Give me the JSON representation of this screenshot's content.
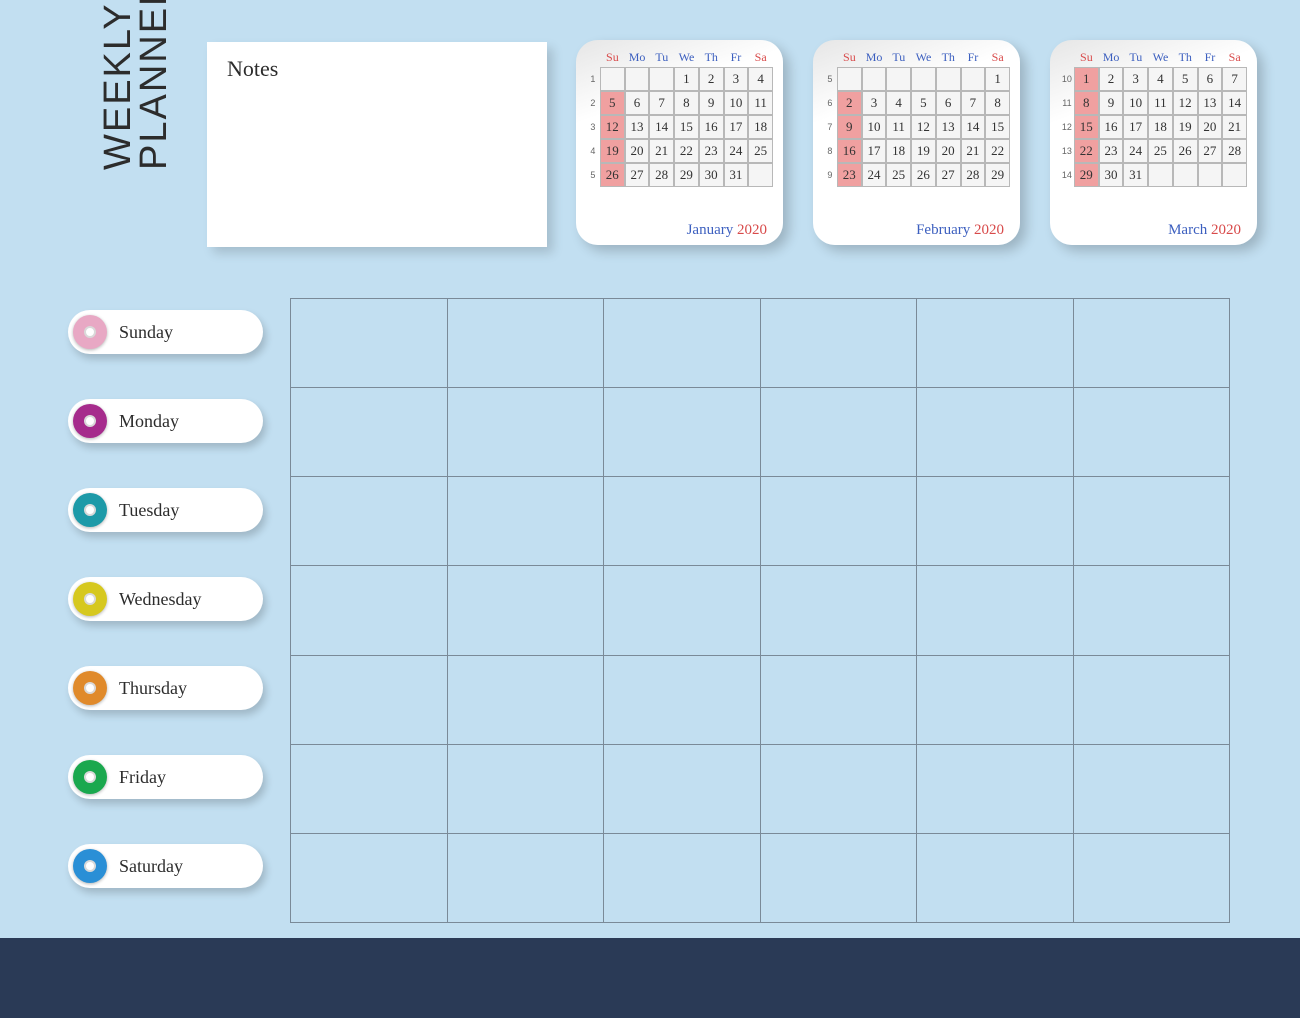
{
  "title": {
    "line1": "WEEKLY",
    "line2": "PLANNER"
  },
  "notes": {
    "label": "Notes"
  },
  "background_color": "#c2dff1",
  "calendars": [
    {
      "month": "January",
      "year": "2020",
      "dow": [
        "Su",
        "Mo",
        "Tu",
        "We",
        "Th",
        "Fr",
        "Sa"
      ],
      "week_nums": [
        "1",
        "2",
        "3",
        "4",
        "5"
      ],
      "weeks": [
        [
          "",
          "",
          "",
          "1",
          "2",
          "3",
          "4"
        ],
        [
          "5",
          "6",
          "7",
          "8",
          "9",
          "10",
          "11"
        ],
        [
          "12",
          "13",
          "14",
          "15",
          "16",
          "17",
          "18"
        ],
        [
          "19",
          "20",
          "21",
          "22",
          "23",
          "24",
          "25"
        ],
        [
          "26",
          "27",
          "28",
          "29",
          "30",
          "31",
          ""
        ]
      ]
    },
    {
      "month": "February",
      "year": "2020",
      "dow": [
        "Su",
        "Mo",
        "Tu",
        "We",
        "Th",
        "Fr",
        "Sa"
      ],
      "week_nums": [
        "5",
        "6",
        "7",
        "8",
        "9"
      ],
      "weeks": [
        [
          "",
          "",
          "",
          "",
          "",
          "",
          "1"
        ],
        [
          "2",
          "3",
          "4",
          "5",
          "6",
          "7",
          "8"
        ],
        [
          "9",
          "10",
          "11",
          "12",
          "13",
          "14",
          "15"
        ],
        [
          "16",
          "17",
          "18",
          "19",
          "20",
          "21",
          "22"
        ],
        [
          "23",
          "24",
          "25",
          "26",
          "27",
          "28",
          "29"
        ]
      ]
    },
    {
      "month": "March",
      "year": "2020",
      "dow": [
        "Su",
        "Mo",
        "Tu",
        "We",
        "Th",
        "Fr",
        "Sa"
      ],
      "week_nums": [
        "10",
        "11",
        "12",
        "13",
        "14"
      ],
      "weeks": [
        [
          "1",
          "2",
          "3",
          "4",
          "5",
          "6",
          "7"
        ],
        [
          "8",
          "9",
          "10",
          "11",
          "12",
          "13",
          "14"
        ],
        [
          "15",
          "16",
          "17",
          "18",
          "19",
          "20",
          "21"
        ],
        [
          "22",
          "23",
          "24",
          "25",
          "26",
          "27",
          "28"
        ],
        [
          "29",
          "30",
          "31",
          "",
          "",
          "",
          ""
        ]
      ]
    }
  ],
  "days": [
    {
      "label": "Sunday",
      "color": "#e8a8c4"
    },
    {
      "label": "Monday",
      "color": "#a62b8c"
    },
    {
      "label": "Tuesday",
      "color": "#1d9aa8"
    },
    {
      "label": "Wednesday",
      "color": "#d6c81f"
    },
    {
      "label": "Thursday",
      "color": "#e08a2b"
    },
    {
      "label": "Friday",
      "color": "#1aa84e"
    },
    {
      "label": "Saturday",
      "color": "#2a8fd6"
    }
  ],
  "grid": {
    "rows": 7,
    "cols": 6,
    "border_color": "#7a8a98"
  },
  "colors": {
    "sunday_highlight": "#f0a0a0",
    "month_name": "#3c5fbf",
    "year": "#d84a4a",
    "dow_weekday": "#3c5fbf",
    "dow_weekend": "#d84a4a"
  }
}
